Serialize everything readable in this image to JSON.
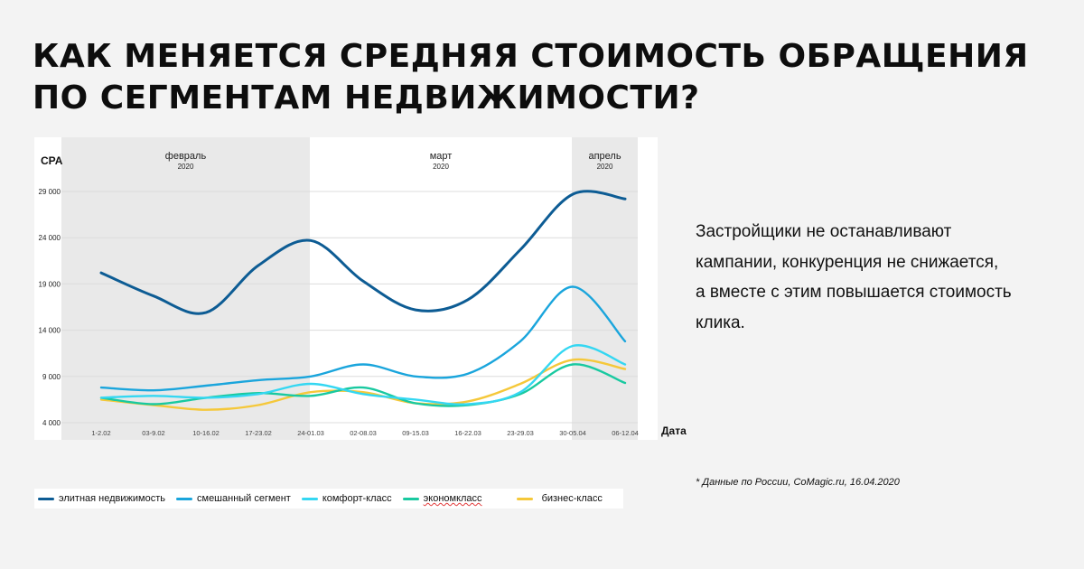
{
  "title": {
    "line1": "Как меняется средняя стоимость обращения",
    "line2": "по сегментам недвижимости?"
  },
  "side_text": {
    "line1": "Застройщики не останавливают",
    "line2": "кампании, конкуренция не снижается,",
    "line3": "а вместе с этим повышается стоимость",
    "line4": "клика."
  },
  "source_note": "* Данные по России, CoMagic.ru, 16.04.2020",
  "chart_data": {
    "type": "line",
    "ylabel": "CPA",
    "xlabel": "Дата",
    "ylim": [
      4000,
      30000
    ],
    "yticks": [
      4000,
      9000,
      14000,
      19000,
      24000,
      29000
    ],
    "ytick_labels": [
      "4 000",
      "9 000",
      "14 000",
      "19 000",
      "24 000",
      "29 000"
    ],
    "categories": [
      "1-2.02",
      "03-9.02",
      "10-16.02",
      "17-23.02",
      "24-01.03",
      "02-08.03",
      "09-15.03",
      "16-22.03",
      "23-29.03",
      "30-05.04",
      "06-12.04"
    ],
    "periods": [
      {
        "month": "февраль",
        "year": "2020",
        "shaded": true
      },
      {
        "month": "март",
        "year": "2020",
        "shaded": false
      },
      {
        "month": "апрель",
        "year": "2020",
        "shaded": true
      }
    ],
    "grid": true,
    "legend_position": "bottom",
    "series": [
      {
        "name": "элитная недвижимость",
        "color": "#0d5c94",
        "values": [
          20200,
          17700,
          15900,
          21000,
          23700,
          19300,
          16200,
          17300,
          22700,
          28700,
          28200
        ]
      },
      {
        "name": "смешанный сегмент",
        "color": "#1aa5dc",
        "values": [
          7800,
          7500,
          8000,
          8600,
          9000,
          10300,
          9000,
          9300,
          12800,
          18700,
          12800
        ]
      },
      {
        "name": "комфорт-класс",
        "color": "#34d7f2",
        "values": [
          6700,
          6900,
          6700,
          7100,
          8200,
          7100,
          6500,
          6000,
          7300,
          12300,
          10300
        ]
      },
      {
        "name": "экономкласс",
        "color": "#19c9a0",
        "values": [
          6700,
          6000,
          6700,
          7200,
          6900,
          7800,
          6100,
          5900,
          7100,
          10300,
          8300
        ]
      },
      {
        "name": "бизнес-класс",
        "color": "#f5c83a",
        "values": [
          6500,
          5900,
          5400,
          5900,
          7300,
          7300,
          6100,
          6300,
          8200,
          10800,
          9800
        ]
      }
    ]
  }
}
